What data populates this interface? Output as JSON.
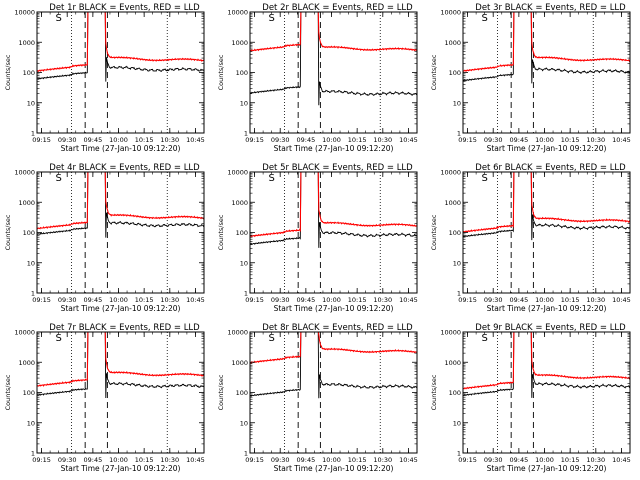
{
  "chart_data": {
    "type": "line",
    "shared": {
      "yscale": "log",
      "ylim": [
        1,
        10000
      ],
      "yticks": [
        "1",
        "10",
        "100",
        "1000",
        "10000"
      ],
      "ylabel": "Counts/sec",
      "xlabel": "Start Time (27-Jan-10 09:12:20)",
      "xlim": [
        "09:12:20",
        "10:50:00"
      ],
      "col0_xticks": [
        "09:15",
        "09:30",
        "09:45",
        "10:00",
        "10:15",
        "10:30",
        "10:45"
      ],
      "col12_xticks": [
        "09:15",
        "09:30",
        "09:45",
        "10:00",
        "10:15",
        "10:30",
        "10:45"
      ],
      "series_colors": {
        "events": "#000000",
        "lld": "#ff0000"
      }
    },
    "panels": [
      {
        "title": "Det 1r BLACK = Events, RED = LLD",
        "marker": "S",
        "lld_high": 150
      },
      {
        "title": "Det 2r BLACK = Events, RED = LLD",
        "marker": "S",
        "lld_high": 700
      },
      {
        "title": "Det 3r BLACK = Events, RED = LLD",
        "marker": "S",
        "lld_high": 150
      },
      {
        "title": "Det 4r BLACK = Events, RED = LLD",
        "marker": "S",
        "lld_high": 180
      },
      {
        "title": "Det 5r BLACK = Events, RED = LLD",
        "marker": "S",
        "lld_high": 100
      },
      {
        "title": "Det 6r BLACK = Events, RED = LLD",
        "marker": "S",
        "lld_high": 140
      },
      {
        "title": "Det 7r BLACK = Events, RED = LLD",
        "marker": "S",
        "lld_high": 220
      },
      {
        "title": "Det 8r BLACK = Events, RED = LLD",
        "marker": "S",
        "lld_high": 1300
      },
      {
        "title": "Det 9r BLACK = Events, RED = LLD",
        "marker": "S",
        "lld_high": 180
      }
    ]
  }
}
